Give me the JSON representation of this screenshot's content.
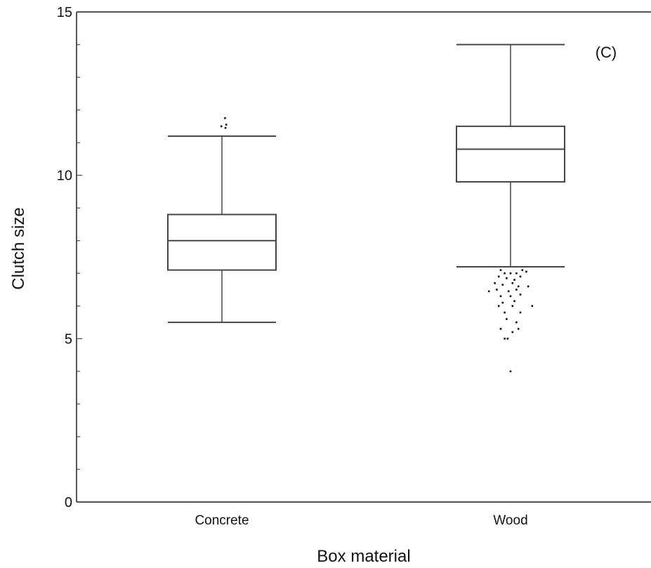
{
  "chart_data": {
    "type": "box",
    "panel_label": "(C)",
    "xlabel": "Box material",
    "ylabel": "Clutch size",
    "ylim": [
      0,
      15
    ],
    "y_major_ticks": [
      0,
      5,
      10,
      15
    ],
    "y_minor_tick_step": 1,
    "grid": false,
    "categories": [
      "Concrete",
      "Wood"
    ],
    "boxes": [
      {
        "category": "Concrete",
        "whisker_low": 5.5,
        "q1": 7.1,
        "median": 8.0,
        "q3": 8.8,
        "whisker_high": 11.2,
        "outliers": [
          [
            -0.03,
            11.5
          ],
          [
            0.16,
            11.75
          ],
          [
            0.18,
            11.45
          ],
          [
            0.22,
            11.55
          ]
        ]
      },
      {
        "category": "Wood",
        "whisker_low": 7.2,
        "q1": 9.8,
        "median": 10.8,
        "q3": 11.5,
        "whisker_high": 14.0,
        "outliers": [
          [
            -0.5,
            7.1
          ],
          [
            -0.3,
            7.0
          ],
          [
            0.0,
            7.0
          ],
          [
            0.3,
            7.0
          ],
          [
            0.6,
            7.1
          ],
          [
            0.8,
            7.05
          ],
          [
            -0.6,
            6.9
          ],
          [
            -0.2,
            6.85
          ],
          [
            0.2,
            6.8
          ],
          [
            0.5,
            6.9
          ],
          [
            -0.8,
            6.7
          ],
          [
            -0.4,
            6.65
          ],
          [
            0.1,
            6.7
          ],
          [
            0.4,
            6.6
          ],
          [
            0.9,
            6.6
          ],
          [
            -0.7,
            6.5
          ],
          [
            -0.1,
            6.45
          ],
          [
            0.3,
            6.5
          ],
          [
            -1.1,
            6.45
          ],
          [
            -0.5,
            6.3
          ],
          [
            0.0,
            6.3
          ],
          [
            0.5,
            6.35
          ],
          [
            -0.4,
            6.1
          ],
          [
            0.2,
            6.15
          ],
          [
            -0.6,
            6.0
          ],
          [
            0.1,
            6.0
          ],
          [
            1.1,
            6.0
          ],
          [
            -0.3,
            5.8
          ],
          [
            0.5,
            5.8
          ],
          [
            -0.2,
            5.6
          ],
          [
            0.3,
            5.5
          ],
          [
            -0.5,
            5.3
          ],
          [
            0.1,
            5.2
          ],
          [
            0.4,
            5.3
          ],
          [
            -0.3,
            5.0
          ],
          [
            -0.15,
            5.0
          ],
          [
            0.0,
            4.0
          ]
        ]
      }
    ]
  }
}
